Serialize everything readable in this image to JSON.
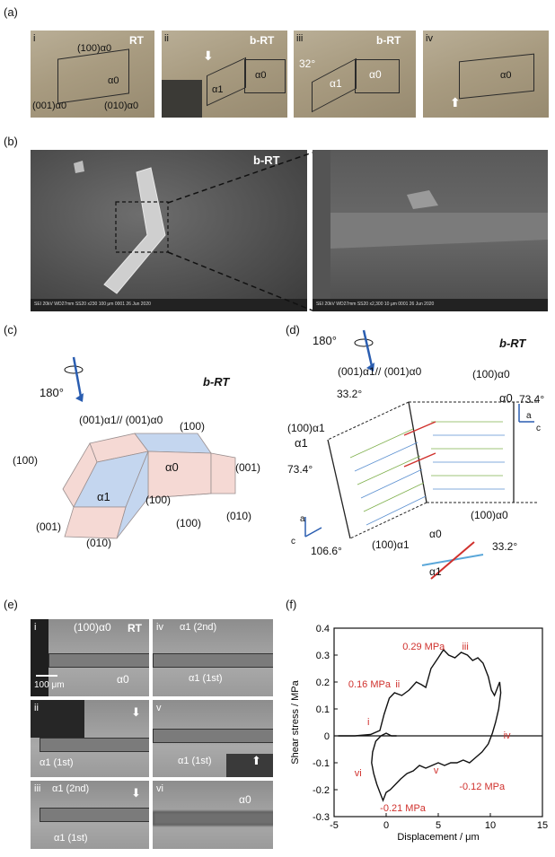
{
  "panels": {
    "a": "(a)",
    "b": "(b)",
    "c": "(c)",
    "d": "(d)",
    "e": "(e)",
    "f": "(f)"
  },
  "a": {
    "i": {
      "num": "i",
      "cond": "RT",
      "l100": "(100)α0",
      "alpha0": "α0",
      "l001": "(001)α0",
      "l010": "(010)α0"
    },
    "ii": {
      "num": "ii",
      "cond": "b-RT",
      "alpha1": "α1",
      "alpha0": "α0"
    },
    "iii": {
      "num": "iii",
      "cond": "b-RT",
      "angle": "32°",
      "alpha1": "α1",
      "alpha0": "α0"
    },
    "iv": {
      "num": "iv",
      "alpha0": "α0"
    }
  },
  "b": {
    "cond": "b-RT",
    "left_footer": "SEI 20kV WD27mm SS20 x230 100 μm 0001 26 Jun 2020",
    "right_footer": "SEI 20kV WD27mm SS20 x2,300 10 μm 0001 26 Jun 2020"
  },
  "c": {
    "rot": "180°",
    "cond": "b-RT",
    "top": "(001)α1// (001)α0",
    "l100a": "(100)",
    "l100b": "(100)",
    "l001a": "(001)",
    "l001b": "(001)",
    "l010a": "(010)",
    "l010b": "(010)",
    "l100c": "(100)",
    "l100d": "(100)",
    "alpha0": "α0",
    "alpha1": "α1"
  },
  "d": {
    "rot": "180°",
    "cond": "b-RT",
    "top": "(001)α1// (001)α0",
    "l100": "(100)α0",
    "a332": "33.2°",
    "a734r": "73.4°",
    "a734l": "73.4°",
    "a1066": "106.6°",
    "l100a1": "(100)α1",
    "alpha1": "α1",
    "alpha0": "α0",
    "lbar100a0": "(100)α0",
    "lbar100a1": "(100)α1",
    "inset_a0": "α0",
    "inset_a1": "α1",
    "inset_angle": "33.2°",
    "axis_a": "a",
    "axis_c": "c"
  },
  "e": {
    "i": {
      "num": "i",
      "l100": "(100)α0",
      "cond": "RT",
      "alpha0": "α0",
      "scale": "100 μm"
    },
    "ii": {
      "num": "ii",
      "first": "α1 (1st)"
    },
    "iii": {
      "num": "iii",
      "second": "α1 (2nd)",
      "first": "α1 (1st)"
    },
    "iv": {
      "num": "iv",
      "second": "α1 (2nd)",
      "first": "α1 (1st)"
    },
    "v": {
      "num": "v",
      "first": "α1 (1st)"
    },
    "vi": {
      "num": "vi",
      "alpha0": "α0"
    }
  },
  "chart_data": {
    "type": "line",
    "xlabel": "Displacement / μm",
    "ylabel": "Shear stress / MPa",
    "xlim": [
      -5,
      15
    ],
    "ylim": [
      -0.3,
      0.4
    ],
    "xticks": [
      -5,
      0,
      5,
      10,
      15
    ],
    "yticks": [
      -0.3,
      -0.2,
      -0.1,
      0,
      0.1,
      0.2,
      0.3,
      0.4
    ],
    "grid": false,
    "series": [
      {
        "x": [
          -4.6,
          -3,
          -1.5,
          -0.6,
          -0.2,
          0.3,
          0.8,
          1.5,
          2.2,
          2.9,
          3.4,
          3.8,
          4.3,
          5.0,
          5.5,
          6.0,
          6.6,
          7.2,
          7.8,
          8.3,
          8.8,
          9.3,
          9.8,
          10.1,
          10.4,
          10.7,
          10.9,
          11.0,
          10.8,
          10.5,
          10.2,
          9.8,
          9.2,
          8.6,
          8.0,
          7.4,
          6.8,
          6.2,
          5.6,
          5.0,
          4.4,
          3.8,
          3.2,
          2.6,
          2.0,
          1.4,
          0.9,
          0.4,
          0.0,
          -0.3,
          -0.6,
          -0.9,
          -1.2,
          -1.4,
          -1.3,
          -1.0,
          -0.5,
          0.0,
          0.5,
          1.0
        ],
        "y": [
          0.0,
          0.0,
          0.005,
          0.02,
          0.08,
          0.14,
          0.16,
          0.15,
          0.17,
          0.2,
          0.19,
          0.18,
          0.25,
          0.29,
          0.32,
          0.3,
          0.29,
          0.31,
          0.3,
          0.28,
          0.29,
          0.27,
          0.22,
          0.17,
          0.15,
          0.18,
          0.2,
          0.16,
          0.1,
          0.05,
          0.01,
          -0.03,
          -0.06,
          -0.08,
          -0.1,
          -0.09,
          -0.1,
          -0.1,
          -0.11,
          -0.1,
          -0.11,
          -0.12,
          -0.11,
          -0.13,
          -0.14,
          -0.16,
          -0.18,
          -0.2,
          -0.21,
          -0.24,
          -0.21,
          -0.18,
          -0.14,
          -0.1,
          -0.06,
          -0.02,
          0.0,
          0.01,
          0.0,
          0.0
        ]
      }
    ],
    "annotations": [
      {
        "text": "0.29 MPa",
        "x": 3.6,
        "y": 0.32
      },
      {
        "text": "0.16 MPa",
        "x": -1.6,
        "y": 0.18
      },
      {
        "text": "ii",
        "x": 1.1,
        "y": 0.18
      },
      {
        "text": "iii",
        "x": 7.6,
        "y": 0.32
      },
      {
        "text": "i",
        "x": -1.7,
        "y": 0.04
      },
      {
        "text": "iv",
        "x": 11.6,
        "y": -0.01
      },
      {
        "text": "vi",
        "x": -2.7,
        "y": -0.15
      },
      {
        "text": "v",
        "x": 4.8,
        "y": -0.14
      },
      {
        "text": "-0.21 MPa",
        "x": 1.6,
        "y": -0.28
      },
      {
        "text": "-0.12 MPa",
        "x": 9.2,
        "y": -0.2
      }
    ],
    "colors": {
      "curve": "#111111",
      "annotation": "#d0312d"
    }
  }
}
